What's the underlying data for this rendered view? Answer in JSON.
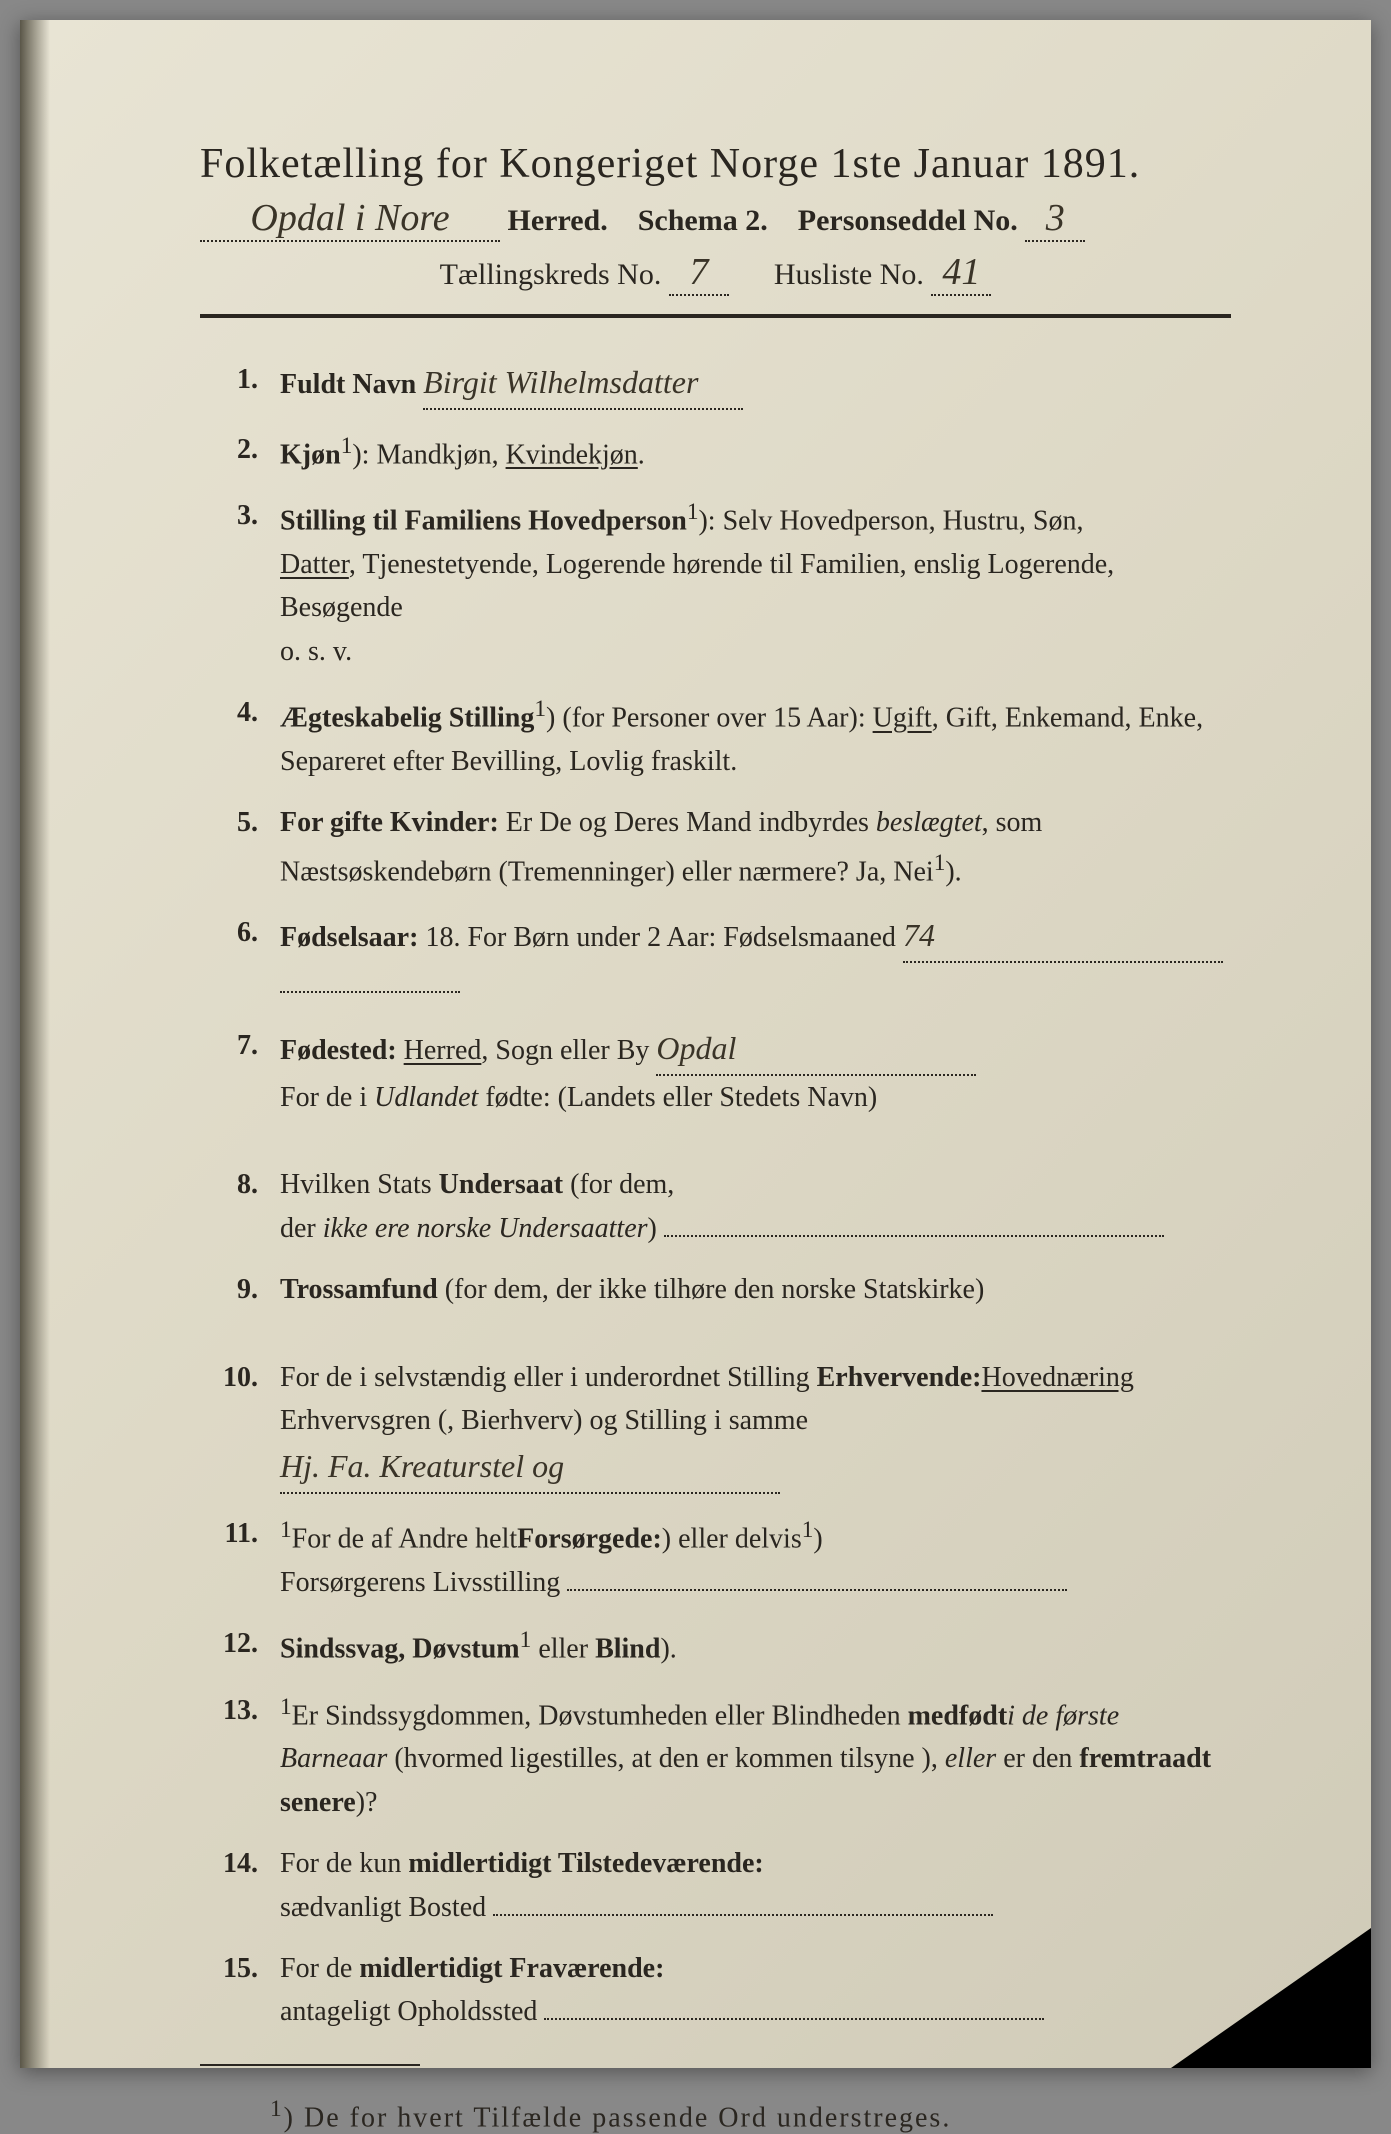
{
  "header": {
    "title": "Folketælling for Kongeriget Norge 1ste Januar 1891.",
    "herred_hand": "Opdal i Nore",
    "herred_label": "Herred.",
    "schema_label": "Schema 2.",
    "personseddel_label": "Personseddel No.",
    "personseddel_no": "3",
    "taellingskreds_label": "Tællingskreds No.",
    "taellingskreds_no": "7",
    "husliste_label": "Husliste No.",
    "husliste_no": "41"
  },
  "items": [
    {
      "num": "1.",
      "label": "Fuldt Navn",
      "hand": "Birgit Wilhelmsdatter",
      "rest": ""
    },
    {
      "num": "2.",
      "label": "Kjøn",
      "sup": "1",
      "rest": "): Mandkjøn, ",
      "under": "Kvindekjøn",
      "rest2": "."
    },
    {
      "num": "3.",
      "label": "Stilling til Familiens Hovedperson",
      "sup": "1",
      "rest": "): Selv Hovedperson, Hustru, Søn, ",
      "under": "Datter",
      "rest2": ", Tjenestetyende, Logerende hørende til Familien, enslig Logerende, Besøgende",
      "rest3": "o. s. v."
    },
    {
      "num": "4.",
      "label": "Ægteskabelig Stilling",
      "sup": "1",
      "rest": ") (for Personer over 15 Aar): ",
      "under": "Ugift",
      "rest2": ", Gift, Enkemand, Enke, Separeret efter Bevilling, Lovlig fraskilt."
    },
    {
      "num": "5.",
      "label": "For gifte Kvinder:",
      "rest": " Er De og Deres Mand indbyrdes ",
      "ital": "beslægtet",
      "rest2": ", som Næstsøskendebørn (Tremenninger) eller nærmere?  Ja, Nei",
      "sup2": "1",
      "rest3": ")."
    },
    {
      "num": "6.",
      "label": "Fødselsaar:",
      "rest": " 18",
      "hand": "74",
      "rest2": ".    For Børn under 2 Aar: Fødselsmaaned",
      "dotsAfter": true
    },
    {
      "num": "7.",
      "label": "Fødested:",
      "rest": " ",
      "under": "Herred",
      "rest2": ", Sogn eller By",
      "hand": "Opdal",
      "rest3": "",
      "line2": "For de i ",
      "ital2": "Udlandet",
      "line2b": " fødte: (Landets eller Stedets Navn)"
    },
    {
      "num": "8.",
      "label": "",
      "rest": "Hvilken Stats ",
      "bold": "Undersaat",
      "rest2": " (for dem,",
      "line2": "der ",
      "ital2": "ikke ere norske Undersaatter",
      "line2b": ")",
      "dotsAfter": true
    },
    {
      "num": "9.",
      "label": "Trossamfund",
      "rest": " (for dem, der ikke tilhøre den norske Statskirke)"
    },
    {
      "num": "10.",
      "label": "",
      "rest": "For de i selvstændig eller i underordnet Stilling ",
      "bold": "Erhvervende:",
      "rest2": " Erhvervsgren (",
      "under": "Hovednæring",
      "rest3": ", Bierhverv) og Stilling i samme",
      "hand2": "Hj. Fa. Kreaturstel og ",
      "dotsAfter": true
    },
    {
      "num": "11.",
      "label": "",
      "rest": "For de af Andre helt",
      "sup": "1",
      "rest2": ") eller delvis",
      "sup2": "1",
      "rest3": ") ",
      "bold": "Forsørgede:",
      "line2": "Forsørgerens Livsstilling",
      "hand2": "",
      "dotsAfter": true
    },
    {
      "num": "12.",
      "label": "Sindssvag, Døvstum",
      "rest": " eller ",
      "bold": "Blind",
      "sup": "1",
      "rest2": ")."
    },
    {
      "num": "13.",
      "label": "",
      "rest": "Er Sindssygdommen, Døvstumheden eller Blindheden ",
      "bold": "medfødt",
      "rest2": " (hvormed ligestilles, at den er kommen tilsyne ",
      "ital": "i de første Barneaar",
      "rest3": "), ",
      "ital2": "eller",
      "rest4": " er den ",
      "bold2": "fremtraadt senere",
      "sup": "1",
      "rest5": ")?"
    },
    {
      "num": "14.",
      "label": "",
      "rest": "For de kun ",
      "bold": "midlertidigt Tilstedeværende:",
      "line2": "sædvanligt Bosted",
      "dotsAfter": true
    },
    {
      "num": "15.",
      "label": "",
      "rest": "For de ",
      "bold": "midlertidigt Fraværende:",
      "line2": "antageligt Opholdssted",
      "dotsAfter": true
    }
  ],
  "footnote": {
    "sup": "1",
    "text": ") De for hvert Tilfælde passende Ord understreges."
  },
  "colors": {
    "paper": "#e0dbc8",
    "ink": "#2a2620",
    "hand": "#3a3428"
  }
}
